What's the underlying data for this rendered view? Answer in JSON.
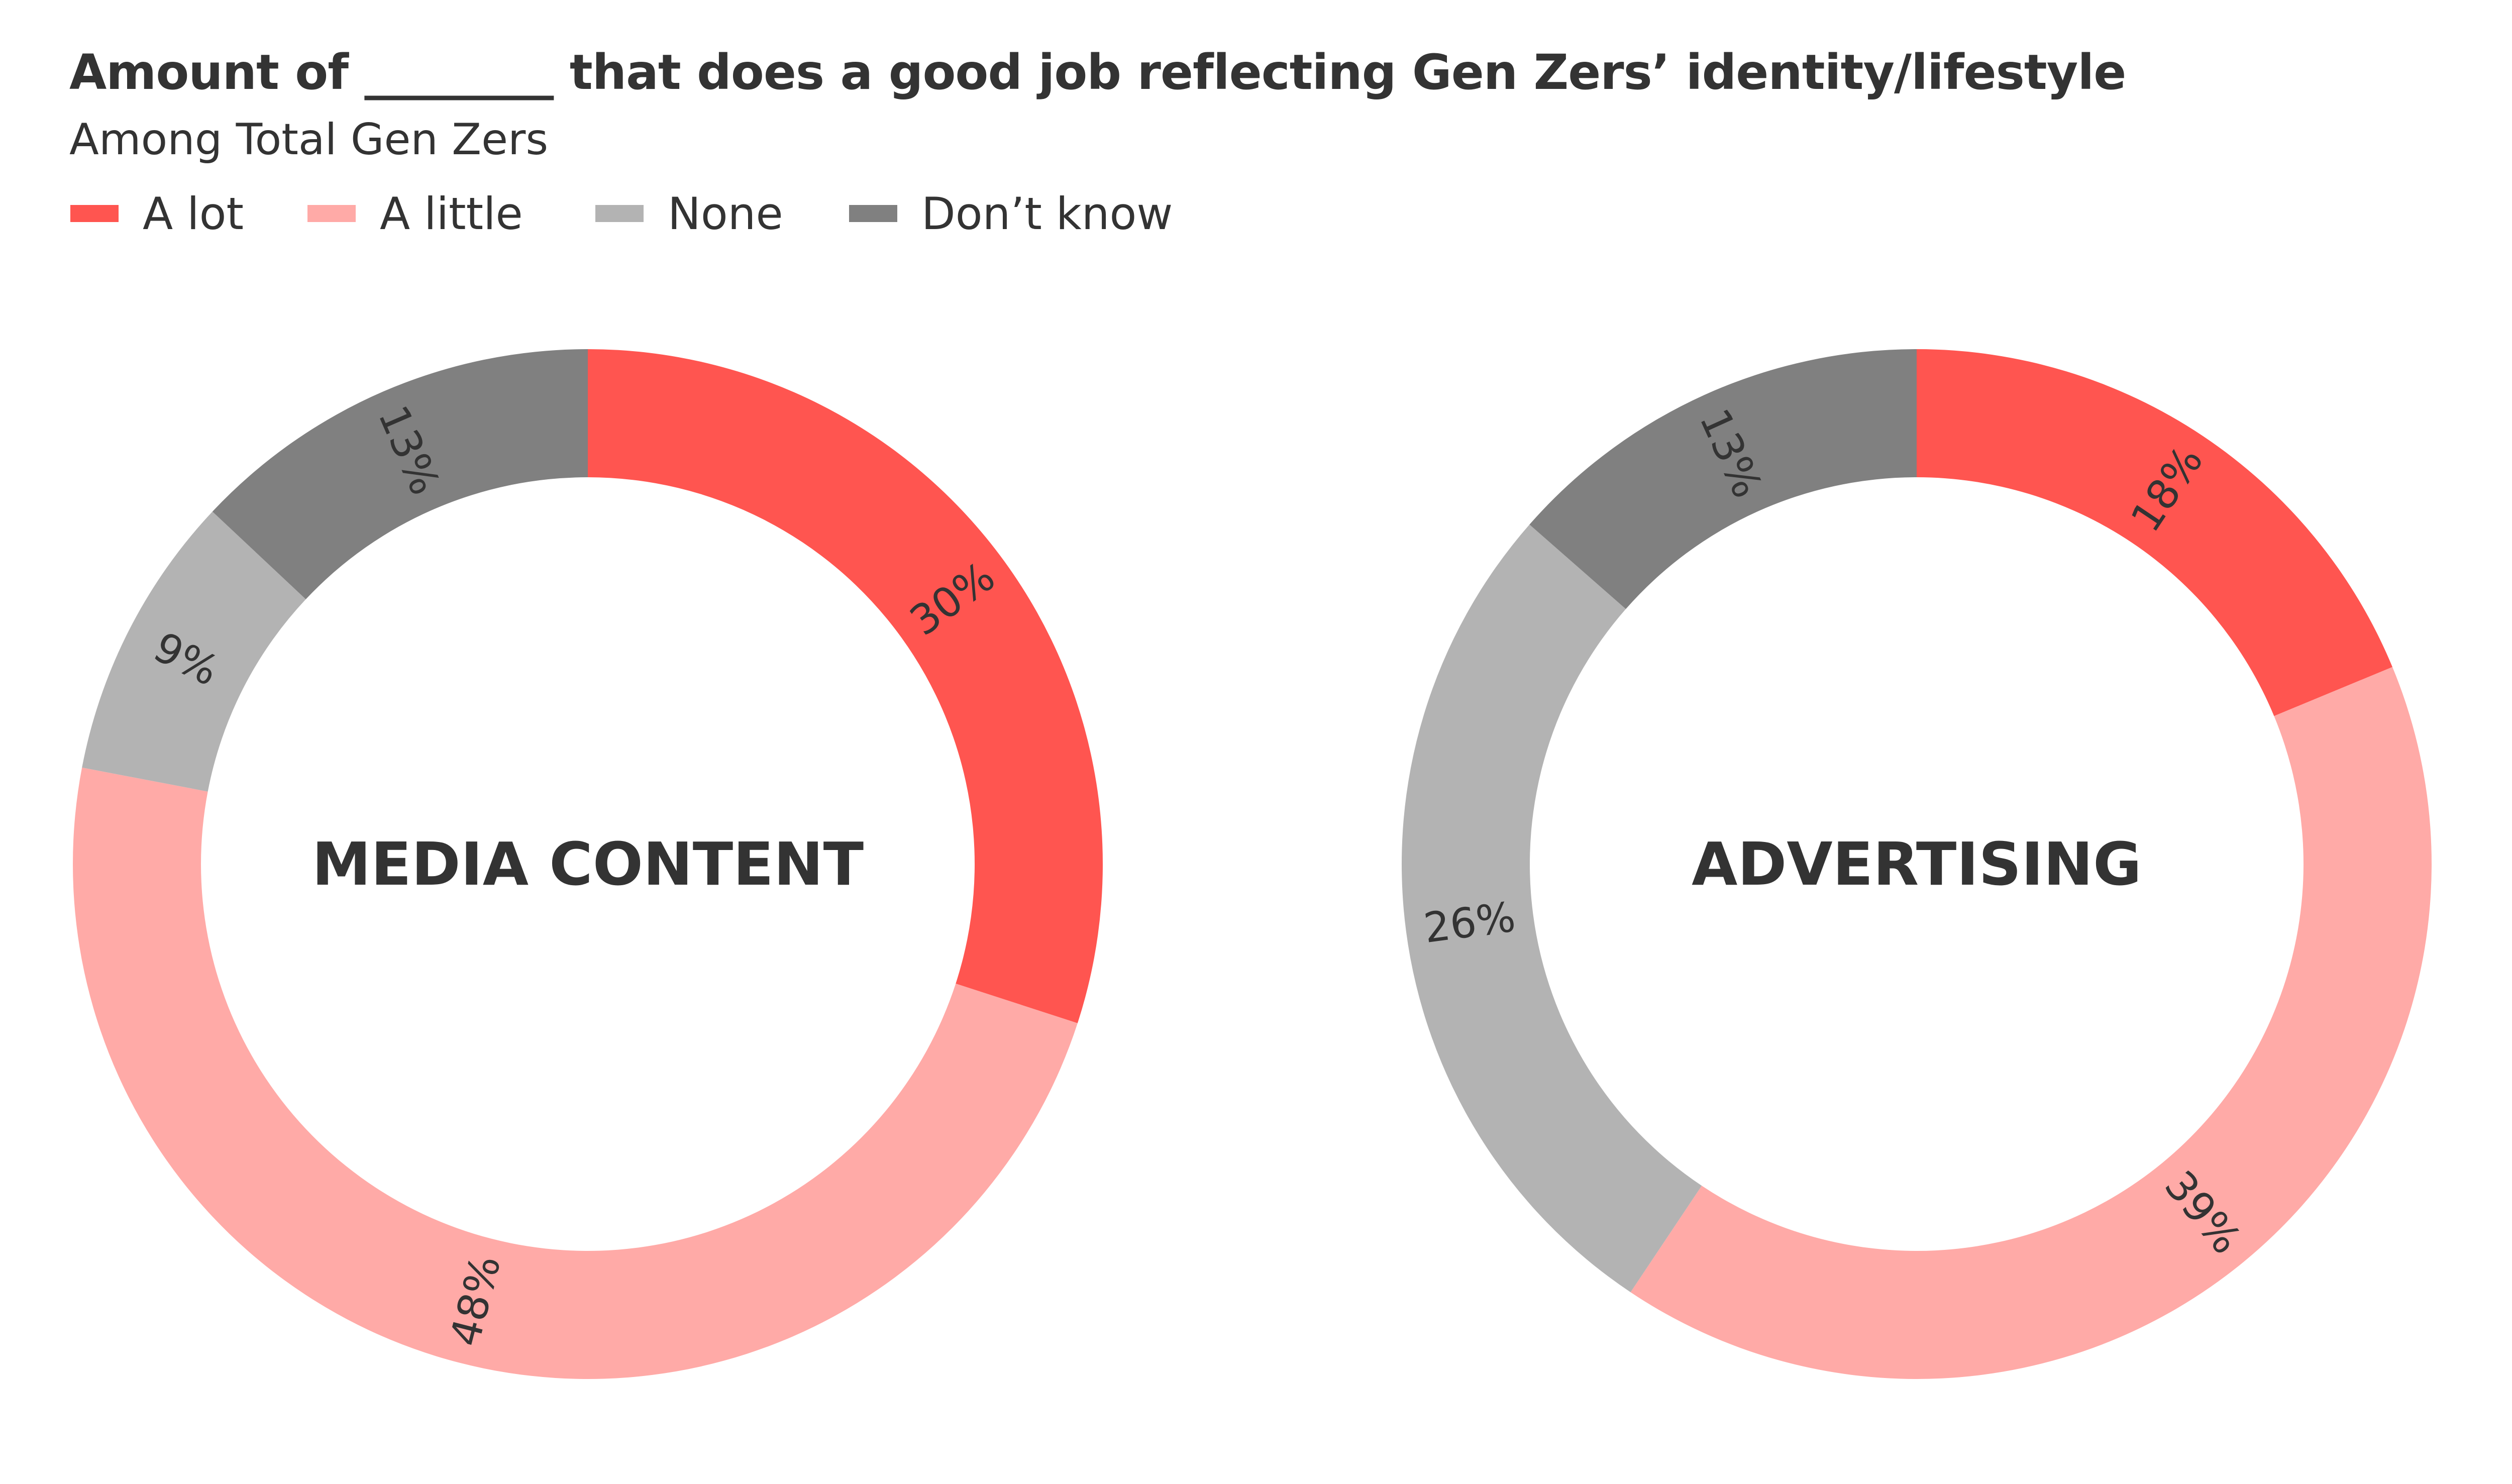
{
  "title": "Amount of ________ that does a good job reflecting Gen Zers’ identity/lifestyle",
  "subtitle": "Among Total Gen Zers",
  "legend": [
    {
      "label": "A lot",
      "color": "#ff5550"
    },
    {
      "label": "A little",
      "color": "#ffaaa7"
    },
    {
      "label": "None",
      "color": "#b3b3b3"
    },
    {
      "label": "Don’t know",
      "color": "#808080"
    }
  ],
  "chart_data": [
    {
      "type": "pie",
      "variant": "donut",
      "center_label": "MEDIA CONTENT",
      "categories": [
        "A lot",
        "A little",
        "None",
        "Don’t know"
      ],
      "values": [
        30,
        48,
        9,
        13
      ],
      "labels": [
        "30%",
        "48%",
        "9%",
        "13%"
      ]
    },
    {
      "type": "pie",
      "variant": "donut",
      "center_label": "ADVERTISING",
      "categories": [
        "A lot",
        "A little",
        "None",
        "Don’t know"
      ],
      "values": [
        18,
        39,
        26,
        13
      ],
      "labels": [
        "18%",
        "39%",
        "26%",
        "13%"
      ]
    }
  ]
}
